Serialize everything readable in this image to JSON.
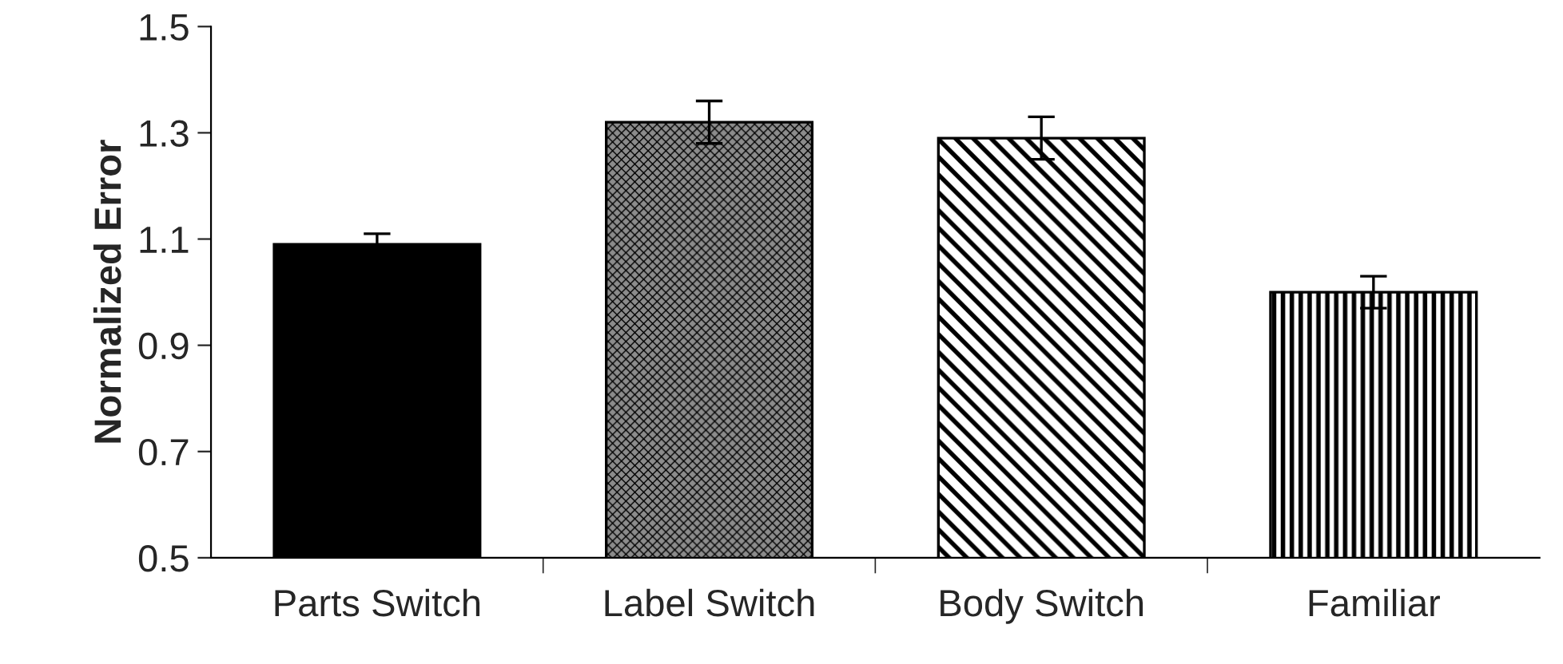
{
  "chart_data": {
    "type": "bar",
    "ylabel": "Normalized Error",
    "categories": [
      "Parts Switch",
      "Label Switch",
      "Body Switch",
      "Familiar"
    ],
    "values": [
      1.09,
      1.32,
      1.29,
      1.0
    ],
    "errors": [
      0.02,
      0.04,
      0.04,
      0.03
    ],
    "colors": [
      "#000000",
      "#8c8c8c",
      "#ffffff",
      "#ffffff"
    ],
    "ylim": [
      0.5,
      1.5
    ],
    "yticks": [
      0.5,
      0.7,
      0.9,
      1.1,
      1.3,
      1.5
    ],
    "grid": false,
    "legend": false
  }
}
